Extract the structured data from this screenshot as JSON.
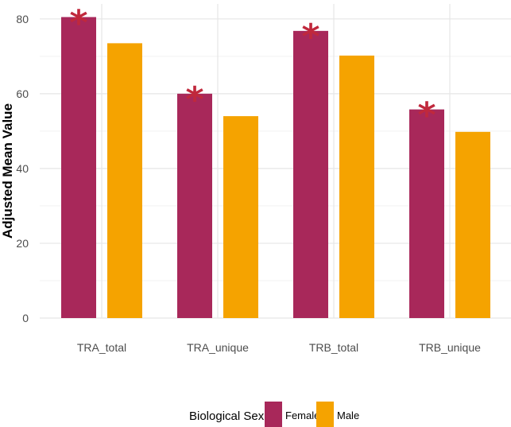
{
  "chart_data": {
    "type": "bar",
    "categories": [
      "TRA_total",
      "TRA_unique",
      "TRB_total",
      "TRB_unique"
    ],
    "series": [
      {
        "name": "Female",
        "values": [
          80.5,
          60.0,
          76.8,
          55.8
        ],
        "color": "#a8285a"
      },
      {
        "name": "Male",
        "values": [
          73.5,
          54.0,
          70.2,
          49.8
        ],
        "color": "#f5a300"
      }
    ],
    "significance_marker": "*",
    "significance_color": "#c0283c",
    "significant": [
      {
        "category": "TRA_total",
        "series": "Female"
      },
      {
        "category": "TRA_unique",
        "series": "Female"
      },
      {
        "category": "TRB_total",
        "series": "Female"
      },
      {
        "category": "TRB_unique",
        "series": "Female"
      }
    ],
    "title": "",
    "xlabel": "",
    "ylabel": "Adjusted Mean Value",
    "ylim": [
      0,
      84
    ],
    "yticks": [
      0,
      20,
      40,
      60,
      80
    ],
    "grid": true,
    "legend": {
      "title": "Biological Sex",
      "position": "bottom"
    }
  }
}
